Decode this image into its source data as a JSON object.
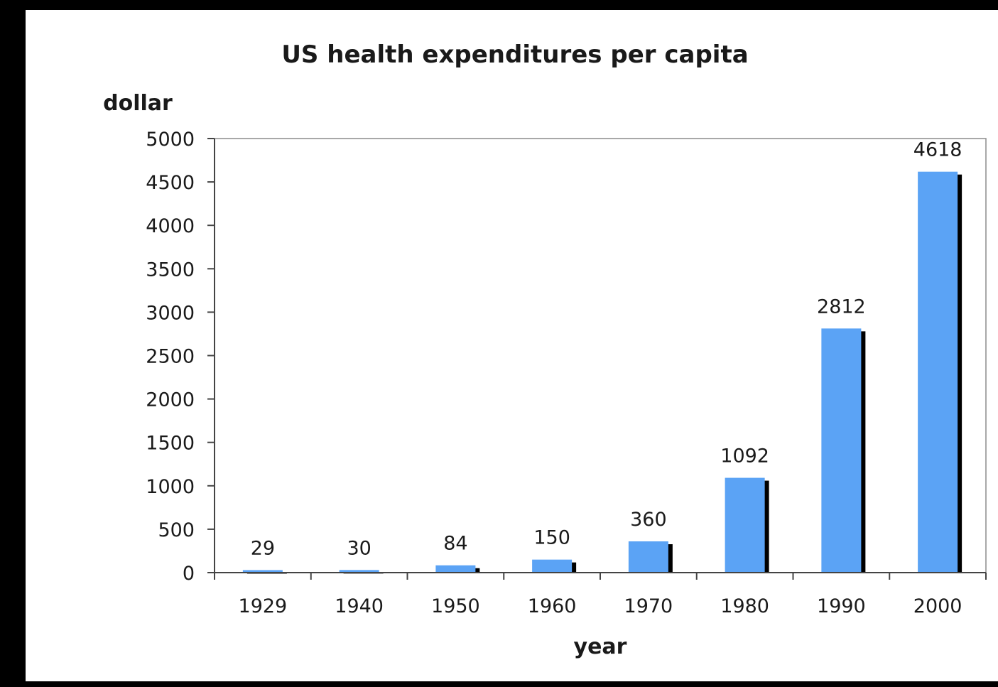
{
  "chart_data": {
    "type": "bar",
    "title": "US health expenditures per capita",
    "xlabel": "year",
    "ylabel": "dollar",
    "categories": [
      "1929",
      "1940",
      "1950",
      "1960",
      "1970",
      "1980",
      "1990",
      "2000"
    ],
    "series": [
      {
        "values": [
          29,
          30,
          84,
          150,
          360,
          1092,
          2812,
          4618
        ],
        "data_labels": [
          "29",
          "30",
          "84",
          "150",
          "360",
          "1092",
          "2812",
          "4618"
        ]
      }
    ],
    "yticks": [
      0,
      500,
      1000,
      1500,
      2000,
      2500,
      3000,
      3500,
      4000,
      4500,
      5000
    ],
    "ylim": [
      0,
      5000
    ],
    "grid": false,
    "legend": "none",
    "colors": {
      "bar": "#5ba3f5",
      "bar_shadow": "#000000",
      "axis": "#444444",
      "frame": "#000000"
    }
  }
}
